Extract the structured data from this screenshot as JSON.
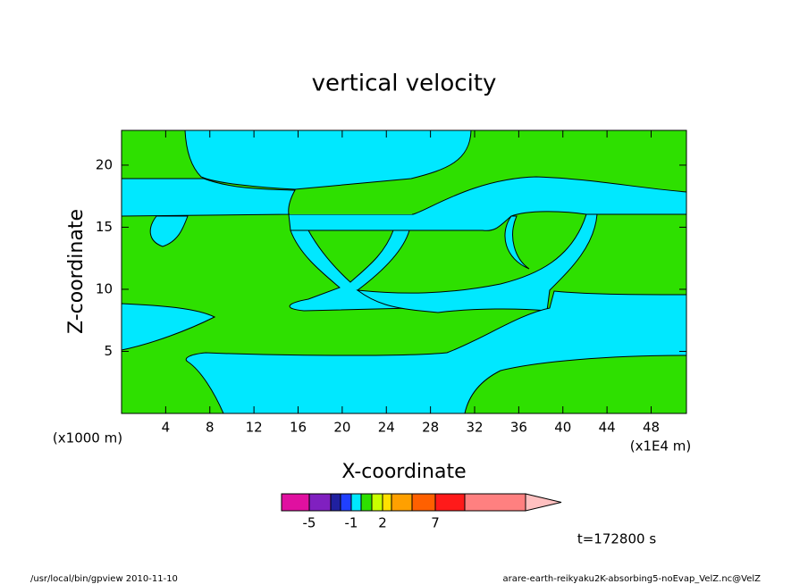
{
  "chart_data": {
    "type": "contour",
    "title": "vertical velocity",
    "xlabel": "X-coordinate",
    "ylabel": "Z-coordinate",
    "x_unit_label": "(x1E4 m)",
    "y_unit_label": "(x1000 m)",
    "xlim": [
      0,
      51.2
    ],
    "xticks": [
      4,
      8,
      12,
      16,
      20,
      24,
      28,
      32,
      36,
      40,
      44,
      48
    ],
    "ylim": [
      0,
      22.8
    ],
    "yticks": [
      5,
      10,
      15,
      20
    ],
    "colorbar": {
      "colors": [
        "#e010a0",
        "#8020c0",
        "#2020a0",
        "#2040ff",
        "#00e8ff",
        "#2ee000",
        "#c8ff00",
        "#ffe000",
        "#ffa000",
        "#ff6000",
        "#ff1a1a",
        "#ff8080"
      ],
      "extend_color": "#ffc0c0",
      "ticks": [
        -5,
        -1,
        2,
        7
      ]
    },
    "time_label": "t=172800 s",
    "footer_left": "/usr/local/bin/gpview  2010-11-10",
    "footer_right": "arare-earth-reikyaku2K-absorbing5-noEvap_VelZ.nc@VelZ"
  }
}
